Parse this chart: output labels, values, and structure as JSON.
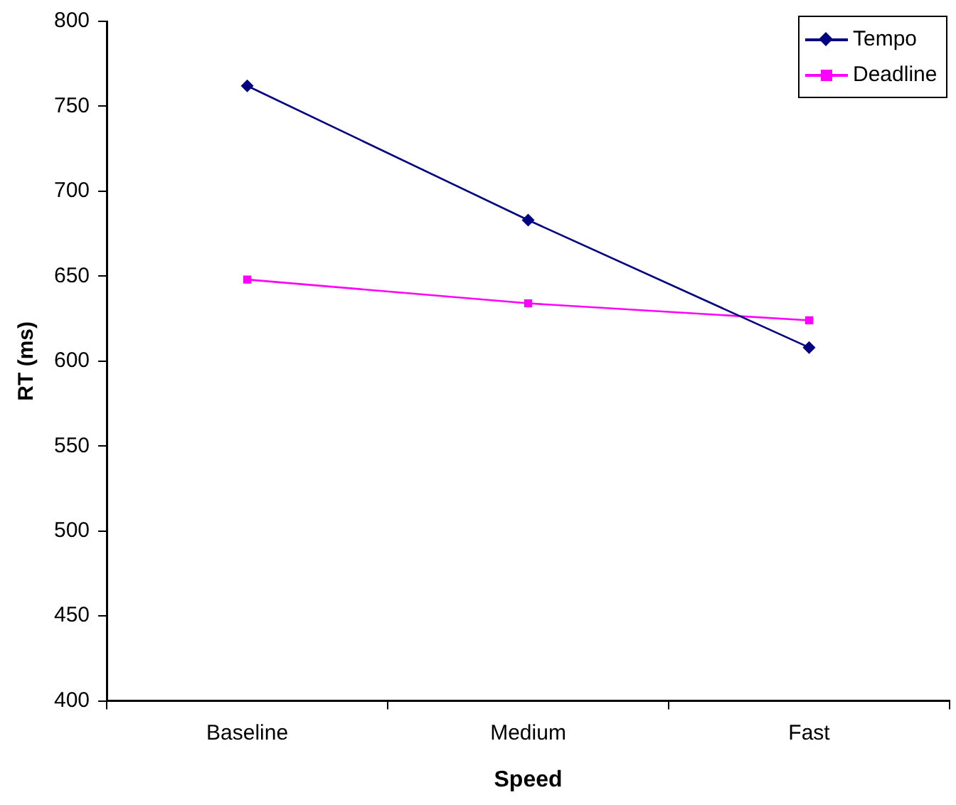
{
  "chart_data": {
    "type": "line",
    "xlabel": "Speed",
    "ylabel": "RT (ms)",
    "categories": [
      "Baseline",
      "Medium",
      "Fast"
    ],
    "series": [
      {
        "name": "Tempo",
        "color": "#000080",
        "marker": "diamond",
        "values": [
          762,
          683,
          608
        ]
      },
      {
        "name": "Deadline",
        "color": "#ff00ff",
        "marker": "square",
        "values": [
          648,
          634,
          624
        ]
      }
    ],
    "ylim": [
      400,
      800
    ],
    "yticks": [
      400,
      450,
      500,
      550,
      600,
      650,
      700,
      750,
      800
    ],
    "grid": false,
    "legend": "top right",
    "line_style": "solid"
  }
}
